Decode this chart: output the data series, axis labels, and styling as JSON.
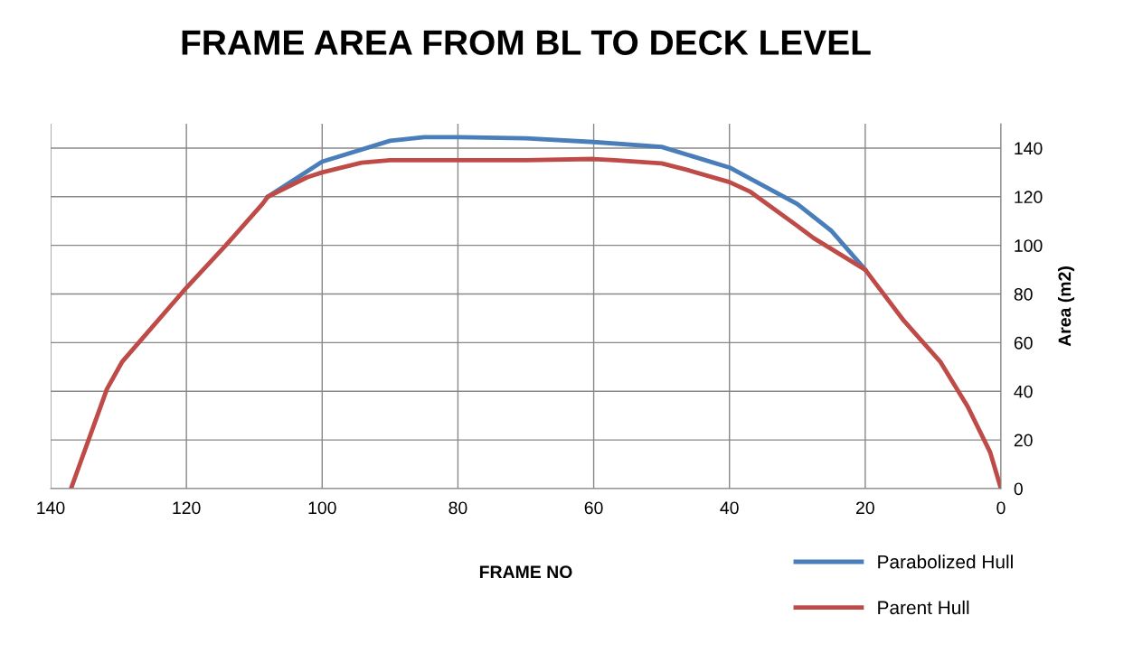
{
  "chart_data": {
    "type": "line",
    "title": "FRAME AREA FROM BL TO DECK LEVEL",
    "xlabel": "FRAME NO",
    "ylabel": "Area (m2)",
    "xlim": [
      140,
      0
    ],
    "xticks": [
      140,
      120,
      100,
      80,
      60,
      40,
      20,
      0
    ],
    "ylim": [
      0,
      150
    ],
    "yticks": [
      0,
      20,
      40,
      60,
      80,
      100,
      120,
      140
    ],
    "grid": true,
    "legend": "bottom right",
    "marker": "none",
    "line_style": "solid",
    "series": [
      {
        "name": "Parabolized Hull",
        "color": "#4a7ebb",
        "x": [
          108,
          100,
          90,
          85,
          80,
          70,
          60,
          50,
          40,
          30,
          25,
          20
        ],
        "values": [
          120,
          134.4,
          143,
          144.5,
          144.5,
          144,
          142.5,
          140.5,
          132,
          117,
          106,
          90
        ]
      },
      {
        "name": "Parent Hull",
        "color": "#be4b48",
        "x": [
          137,
          131.7,
          129.5,
          126.1,
          120,
          114.2,
          108.8,
          108,
          102.2,
          100,
          94.2,
          90,
          80,
          70,
          60,
          56.9,
          50,
          46.2,
          40,
          36.9,
          30,
          27.6,
          20,
          14.3,
          8.9,
          4.9,
          1.6,
          0
        ],
        "values": [
          0,
          41,
          52,
          63,
          82.6,
          100,
          117,
          120,
          128,
          130,
          134,
          135,
          135,
          135,
          135.5,
          135,
          133.7,
          131,
          126,
          122,
          108,
          103,
          90,
          69,
          52,
          33.7,
          15,
          0
        ]
      }
    ]
  }
}
